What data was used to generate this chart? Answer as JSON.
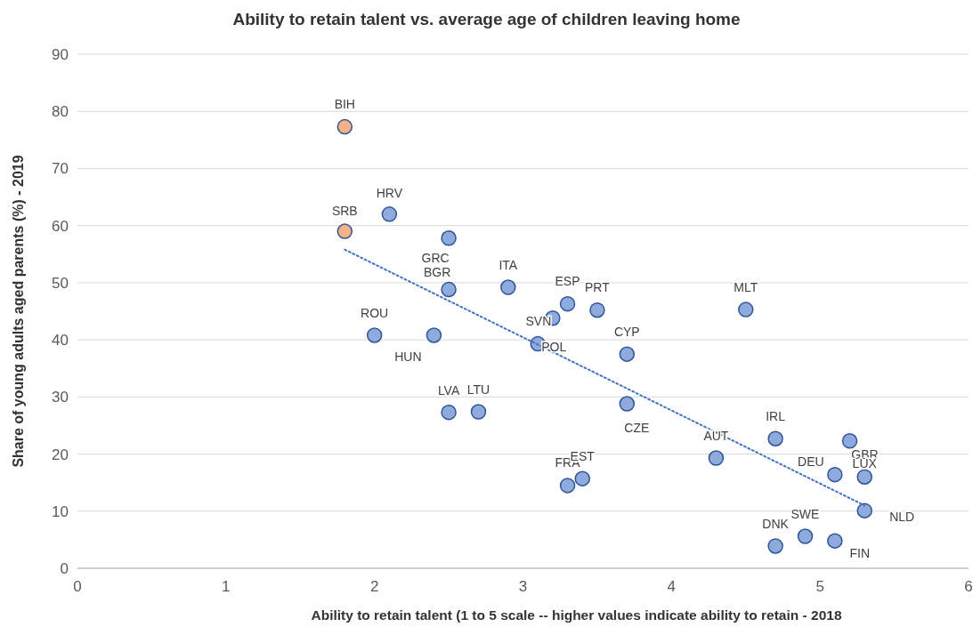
{
  "chart_data": {
    "type": "scatter",
    "title": "Ability to retain talent vs. average age of children leaving home",
    "xlabel": "Ability to retain talent (1 to 5 scale -- higher values indicate ability to retain  - 2018",
    "ylabel": "Share of young adults aged  parents (%) - 2019",
    "xlim": [
      0,
      6
    ],
    "ylim": [
      0,
      90
    ],
    "xticks": [
      0,
      1,
      2,
      3,
      4,
      5,
      6
    ],
    "yticks": [
      0,
      10,
      20,
      30,
      40,
      50,
      60,
      70,
      80,
      90
    ],
    "grid": "y",
    "marker": "circle",
    "series": [
      {
        "color": "#f4b183",
        "x": [
          1.8,
          1.8
        ],
        "values": [
          77.3,
          59.0
        ]
      },
      {
        "color": "#8faadc",
        "x": [
          2.1,
          2.5,
          2.5,
          2.9,
          3.3,
          3.5,
          4.5,
          2.0,
          2.4,
          3.2,
          3.1,
          3.7,
          2.5,
          2.7,
          3.7,
          4.7,
          4.3,
          5.2,
          5.1,
          5.3,
          5.3,
          3.3,
          3.4,
          4.7,
          4.9,
          5.1
        ],
        "values": [
          62.0,
          57.8,
          48.8,
          49.2,
          46.3,
          45.2,
          45.3,
          40.8,
          40.8,
          43.8,
          39.3,
          37.5,
          27.3,
          27.4,
          28.8,
          22.7,
          19.3,
          22.3,
          16.4,
          16.0,
          10.1,
          14.5,
          15.7,
          3.9,
          5.6,
          4.8
        ]
      },
      {
        "type": "line",
        "marker": "none",
        "line_style": "dotted",
        "color": "#4472c4",
        "x": [
          1.8,
          5.3
        ],
        "values": [
          55.8,
          11.0
        ]
      }
    ],
    "annotations": [
      {
        "text": "BIH",
        "x": 1.8,
        "y": 77.3
      },
      {
        "text": "SRB",
        "x": 1.8,
        "y": 59.0
      },
      {
        "text": "HRV",
        "x": 2.1,
        "y": 62.0
      },
      {
        "text": "GRC",
        "x": 2.5,
        "y": 57.8
      },
      {
        "text": "BGR",
        "x": 2.5,
        "y": 48.8
      },
      {
        "text": "ITA",
        "x": 2.9,
        "y": 49.2
      },
      {
        "text": "ESP",
        "x": 3.3,
        "y": 46.3
      },
      {
        "text": "PRT",
        "x": 3.5,
        "y": 45.2
      },
      {
        "text": "MLT",
        "x": 4.5,
        "y": 45.3
      },
      {
        "text": "ROU",
        "x": 2.0,
        "y": 40.8
      },
      {
        "text": "HUN",
        "x": 2.4,
        "y": 40.8
      },
      {
        "text": "SVN",
        "x": 3.2,
        "y": 43.8
      },
      {
        "text": "POL",
        "x": 3.1,
        "y": 39.3
      },
      {
        "text": "CYP",
        "x": 3.7,
        "y": 37.5
      },
      {
        "text": "LVA",
        "x": 2.5,
        "y": 27.3
      },
      {
        "text": "LTU",
        "x": 2.7,
        "y": 27.4
      },
      {
        "text": "CZE",
        "x": 3.7,
        "y": 28.8
      },
      {
        "text": "IRL",
        "x": 4.7,
        "y": 22.7
      },
      {
        "text": "AUT",
        "x": 4.3,
        "y": 19.3
      },
      {
        "text": "GBR",
        "x": 5.2,
        "y": 22.3
      },
      {
        "text": "DEU",
        "x": 5.1,
        "y": 16.4
      },
      {
        "text": "LUX",
        "x": 5.3,
        "y": 16.0
      },
      {
        "text": "NLD",
        "x": 5.3,
        "y": 10.1
      },
      {
        "text": "FRA",
        "x": 3.3,
        "y": 14.5
      },
      {
        "text": "EST",
        "x": 3.4,
        "y": 15.7
      },
      {
        "text": "DNK",
        "x": 4.7,
        "y": 3.9
      },
      {
        "text": "SWE",
        "x": 4.9,
        "y": 5.6
      },
      {
        "text": "FIN",
        "x": 5.1,
        "y": 4.8
      }
    ]
  }
}
